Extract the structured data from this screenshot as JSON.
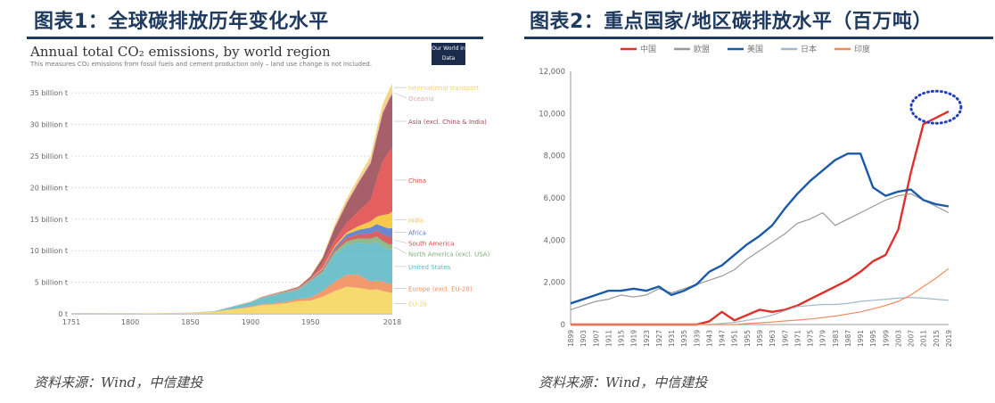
{
  "figure1": {
    "heading": "图表1：全球碳排放历年变化水平",
    "source": "资料来源：Wind，中信建投",
    "owid_logo": "Our World in Data",
    "chart_data": {
      "type": "area",
      "title": "Annual total CO₂ emissions, by world region",
      "subtitle": "This measures CO₂ emissions from fossil fuels and cement production only – land use change is not included.",
      "xlabel": "",
      "ylabel": "",
      "x_ticks": [
        "1751",
        "1800",
        "1850",
        "1900",
        "1950",
        "2018"
      ],
      "y_ticks": [
        "0 t",
        "5 billion t",
        "10 billion t",
        "15 billion t",
        "20 billion t",
        "25 billion t",
        "30 billion t",
        "35 billion t"
      ],
      "ylim": [
        0,
        37
      ],
      "x": [
        1751,
        1800,
        1850,
        1870,
        1900,
        1910,
        1920,
        1930,
        1940,
        1950,
        1960,
        1970,
        1980,
        1990,
        2000,
        2005,
        2010,
        2015,
        2018
      ],
      "series": [
        {
          "name": "EU-28",
          "color": "#f5d55a",
          "values": [
            0,
            0.01,
            0.18,
            0.35,
            1.05,
            1.4,
            1.5,
            1.7,
            2.0,
            2.1,
            2.7,
            3.6,
            4.3,
            4.1,
            3.8,
            3.9,
            3.6,
            3.4,
            3.3
          ]
        },
        {
          "name": "Europe (excl. EU-28)",
          "color": "#f08c5a",
          "values": [
            0,
            0,
            0.01,
            0.02,
            0.1,
            0.15,
            0.15,
            0.25,
            0.35,
            0.5,
            0.9,
            1.5,
            1.9,
            2.1,
            1.3,
            1.4,
            1.5,
            1.4,
            1.5
          ]
        },
        {
          "name": "United States",
          "color": "#5cb8c5",
          "values": [
            0,
            0,
            0.01,
            0.05,
            0.65,
            1.0,
            1.3,
            1.4,
            1.45,
            2.5,
            2.9,
            4.3,
            4.7,
            5.1,
            6.0,
            6.1,
            5.6,
            5.4,
            5.4
          ]
        },
        {
          "name": "North America (excl. USA)",
          "color": "#7fb07a",
          "values": [
            0,
            0,
            0,
            0,
            0.03,
            0.05,
            0.08,
            0.1,
            0.1,
            0.15,
            0.25,
            0.45,
            0.6,
            0.65,
            0.8,
            0.85,
            0.85,
            0.82,
            0.85
          ]
        },
        {
          "name": "South America",
          "color": "#d04c4c",
          "values": [
            0,
            0,
            0,
            0,
            0.01,
            0.02,
            0.03,
            0.04,
            0.05,
            0.1,
            0.2,
            0.35,
            0.55,
            0.65,
            0.85,
            0.95,
            1.1,
            1.2,
            1.2
          ]
        },
        {
          "name": "Africa",
          "color": "#5577cc",
          "values": [
            0,
            0,
            0,
            0,
            0.01,
            0.02,
            0.04,
            0.05,
            0.06,
            0.1,
            0.16,
            0.3,
            0.55,
            0.7,
            0.9,
            1.0,
            1.2,
            1.3,
            1.35
          ]
        },
        {
          "name": "India",
          "color": "#f9c233",
          "values": [
            0,
            0,
            0,
            0,
            0.02,
            0.03,
            0.04,
            0.05,
            0.05,
            0.07,
            0.12,
            0.2,
            0.3,
            0.6,
            1.0,
            1.2,
            1.8,
            2.3,
            2.6
          ]
        },
        {
          "name": "China",
          "color": "#e04a4a",
          "values": [
            0,
            0,
            0,
            0,
            0.01,
            0.02,
            0.03,
            0.03,
            0.05,
            0.08,
            0.8,
            0.9,
            1.5,
            2.4,
            3.4,
            5.9,
            8.5,
            9.8,
            10.0
          ]
        },
        {
          "name": "Asia (excl. China & India)",
          "color": "#9b4a55",
          "values": [
            0,
            0,
            0,
            0,
            0.02,
            0.04,
            0.06,
            0.1,
            0.15,
            0.3,
            0.8,
            2.0,
            3.1,
            4.5,
            5.8,
            6.6,
            7.6,
            8.2,
            8.6
          ]
        },
        {
          "name": "Oceania",
          "color": "#e8a8a8",
          "values": [
            0,
            0,
            0,
            0,
            0.01,
            0.02,
            0.02,
            0.03,
            0.04,
            0.05,
            0.08,
            0.12,
            0.18,
            0.25,
            0.35,
            0.42,
            0.44,
            0.45,
            0.45
          ]
        },
        {
          "name": "International transport",
          "color": "#f5d26b",
          "values": [
            0,
            0,
            0,
            0,
            0.01,
            0.02,
            0.03,
            0.04,
            0.05,
            0.1,
            0.2,
            0.4,
            0.55,
            0.6,
            0.8,
            0.95,
            1.05,
            1.1,
            1.2
          ]
        }
      ]
    }
  },
  "figure2": {
    "heading": "图表2：重点国家/地区碳排放水平（百万吨）",
    "source": "资料来源：Wind，中信建投",
    "chart_data": {
      "type": "line",
      "title": "",
      "xlabel": "",
      "ylabel": "",
      "ylim": [
        0,
        12000
      ],
      "y_ticks": [
        "0",
        "2,000",
        "4,000",
        "6,000",
        "8,000",
        "10,000",
        "12,000"
      ],
      "x": [
        "1899",
        "1903",
        "1907",
        "1911",
        "1915",
        "1919",
        "1923",
        "1927",
        "1931",
        "1935",
        "1939",
        "1943",
        "1947",
        "1951",
        "1955",
        "1959",
        "1963",
        "1967",
        "1971",
        "1975",
        "1979",
        "1983",
        "1987",
        "1991",
        "1995",
        "1999",
        "2003",
        "2007",
        "2011",
        "2015",
        "2019"
      ],
      "x_tick_labels": [
        "1899",
        "1903",
        "1907",
        "1911",
        "1915",
        "1919",
        "1923",
        "1927",
        "1931",
        "1935",
        "1939",
        "1943",
        "1947",
        "1951",
        "1955",
        "1959",
        "1963",
        "1967",
        "1971",
        "1975",
        "1979",
        "1983",
        "1987",
        "1991",
        "1995",
        "1999",
        "2003",
        "2007",
        "2011",
        "2015",
        "2019"
      ],
      "series": [
        {
          "name": "中国",
          "color": "#e0302a",
          "values": [
            0,
            0,
            0,
            0,
            0,
            0,
            0,
            0,
            0,
            0,
            0,
            150,
            600,
            200,
            450,
            700,
            600,
            700,
            900,
            1200,
            1500,
            1800,
            2100,
            2500,
            3000,
            3300,
            4500,
            7200,
            9500,
            9800,
            10100
          ]
        },
        {
          "name": "欧盟",
          "color": "#999999",
          "values": [
            700,
            900,
            1100,
            1200,
            1400,
            1300,
            1400,
            1700,
            1500,
            1700,
            1900,
            2100,
            2300,
            2600,
            3100,
            3500,
            3900,
            4300,
            4800,
            5000,
            5300,
            4700,
            5000,
            5300,
            5600,
            5900,
            6100,
            6200,
            5900,
            5600,
            5300
          ]
        },
        {
          "name": "美国",
          "color": "#1a5aa8",
          "values": [
            1000,
            1200,
            1400,
            1600,
            1600,
            1700,
            1600,
            1800,
            1400,
            1600,
            1900,
            2500,
            2800,
            3300,
            3800,
            4200,
            4700,
            5500,
            6200,
            6800,
            7300,
            7800,
            8100,
            8100,
            6500,
            6100,
            6300,
            6400,
            5900,
            5700,
            5600
          ]
        },
        {
          "name": "日本",
          "color": "#9fb8c8",
          "values": [
            0,
            0,
            0,
            0,
            0,
            0,
            0,
            0,
            0,
            0,
            0,
            0,
            50,
            100,
            200,
            300,
            450,
            650,
            850,
            900,
            950,
            950,
            1000,
            1100,
            1150,
            1200,
            1250,
            1280,
            1250,
            1200,
            1150
          ]
        },
        {
          "name": "印度",
          "color": "#f08a5d",
          "values": [
            0,
            0,
            0,
            0,
            0,
            0,
            0,
            0,
            0,
            0,
            0,
            0,
            0,
            0,
            50,
            80,
            120,
            170,
            210,
            260,
            330,
            400,
            500,
            600,
            750,
            900,
            1100,
            1400,
            1800,
            2200,
            2650
          ]
        }
      ]
    }
  }
}
